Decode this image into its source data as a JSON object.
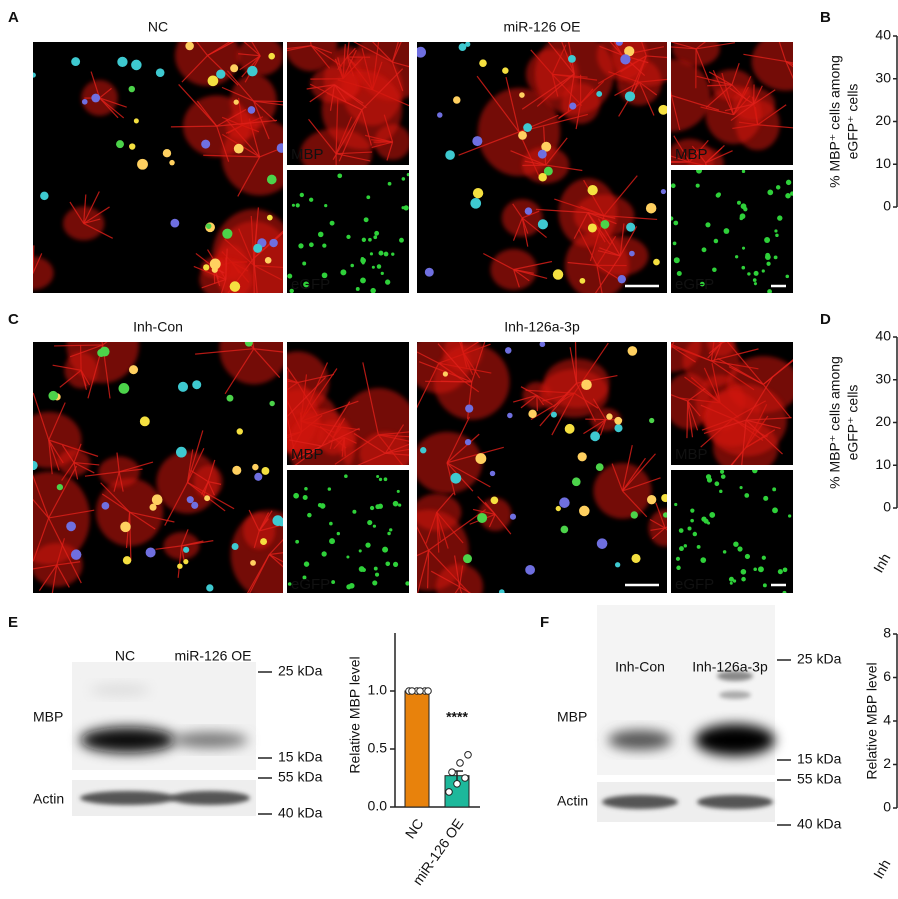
{
  "panel_a": {
    "letter": "A",
    "conditions": [
      "NC",
      "miR-126 OE"
    ],
    "channels": [
      "MBP",
      "eGFP"
    ]
  },
  "panel_b": {
    "letter": "B",
    "y_label": [
      "% MBP⁺ cells among",
      "eGFP⁺ cells"
    ],
    "ylim": [
      0,
      40
    ],
    "yticks": [
      0,
      10,
      20,
      30,
      40
    ]
  },
  "panel_c": {
    "letter": "C",
    "conditions": [
      "Inh-Con",
      "Inh-126a-3p"
    ],
    "channels": [
      "MBP",
      "eGFP"
    ]
  },
  "panel_d": {
    "letter": "D",
    "y_label": [
      "% MBP⁺ cells among",
      "eGFP⁺ cells"
    ],
    "ylim": [
      0,
      40
    ],
    "yticks": [
      0,
      10,
      20,
      30,
      40
    ],
    "x_label_partial": "Inh"
  },
  "panel_e": {
    "letter": "E",
    "blot": {
      "lanes": [
        "NC",
        "miR-126 OE"
      ],
      "rows": [
        "MBP",
        "Actin"
      ],
      "markers": [
        "25 kDa",
        "15 kDa",
        "55 kDa",
        "40 kDa"
      ]
    },
    "chart": {
      "type": "bar",
      "y_label": "Relative MBP level",
      "categories": [
        "NC",
        "miR-126 OE"
      ],
      "values": [
        1.0,
        0.27
      ],
      "errors": [
        0,
        0.04
      ],
      "colors": [
        "#e8820c",
        "#1db89b"
      ],
      "points": [
        [
          1,
          1,
          1,
          1,
          1,
          1
        ],
        [
          0.13,
          0.2,
          0.25,
          0.3,
          0.38,
          0.45
        ]
      ],
      "ylim": [
        0,
        1.5
      ],
      "yticks": [
        {
          "value": 0,
          "label": "0.0"
        },
        {
          "value": 0.5,
          "label": "0.5"
        },
        {
          "value": 1,
          "label": "1.0"
        }
      ],
      "annotation": "****"
    }
  },
  "panel_f": {
    "letter": "F",
    "blot": {
      "lanes": [
        "Inh-Con",
        "Inh-126a-3p"
      ],
      "rows": [
        "MBP",
        "Actin"
      ],
      "markers": [
        "25 kDa",
        "15 kDa",
        "55 kDa",
        "40 kDa"
      ]
    },
    "chart": {
      "y_label": "Relative MBP level",
      "ylim": [
        0,
        8
      ],
      "yticks": [
        0,
        2,
        4,
        6,
        8
      ],
      "x_label_partial": "Inh"
    }
  }
}
